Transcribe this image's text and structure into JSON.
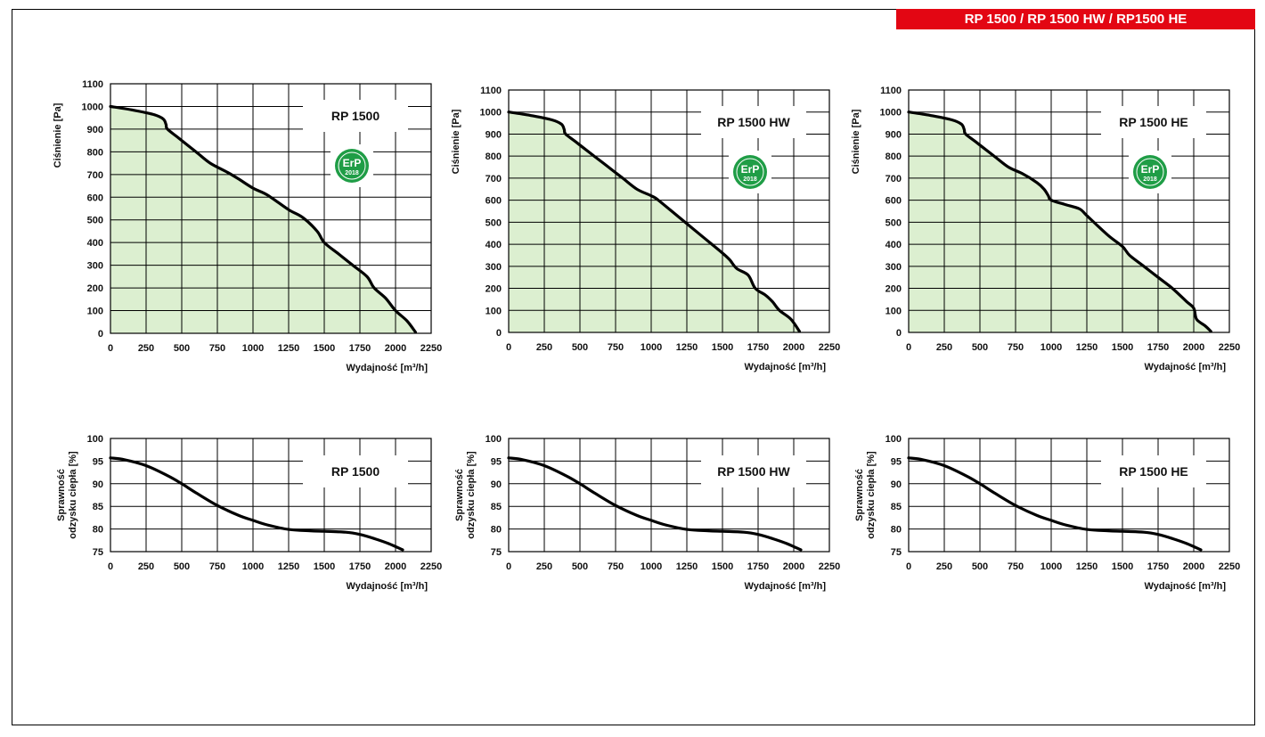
{
  "header": {
    "banner": "RP 1500 / RP 1500 HW / RP1500 HE"
  },
  "colors": {
    "banner": "#e30613",
    "fill": "#dcefd0",
    "badge": "#1f9d46",
    "curve": "#000000"
  },
  "erp_badge": {
    "text": "ErP",
    "year": "2018"
  },
  "chart_data": [
    {
      "type": "area",
      "model_label": "RP 1500",
      "xlabel": "Wydajność [m³/h]",
      "ylabel": "Ciśnienie [Pa]",
      "xlim": [
        0,
        2250
      ],
      "ylim": [
        0,
        1100
      ],
      "xticks": [
        0,
        250,
        500,
        750,
        1000,
        1250,
        1500,
        1750,
        2000,
        2250
      ],
      "yticks": [
        0,
        100,
        200,
        300,
        400,
        500,
        600,
        700,
        800,
        900,
        1000,
        1100
      ],
      "grid": true,
      "badge": true,
      "x": [
        0,
        150,
        300,
        370,
        390,
        400,
        480,
        600,
        700,
        820,
        900,
        1000,
        1100,
        1250,
        1350,
        1450,
        1500,
        1600,
        1700,
        1800,
        1850,
        1930,
        2000,
        2080,
        2140
      ],
      "y": [
        1000,
        985,
        965,
        945,
        920,
        900,
        860,
        800,
        750,
        710,
        680,
        640,
        610,
        545,
        510,
        450,
        400,
        350,
        300,
        250,
        200,
        155,
        100,
        55,
        5
      ]
    },
    {
      "type": "area",
      "model_label": "RP 1500 HW",
      "xlabel": "Wydajność [m³/h]",
      "ylabel": "Ciśnienie [Pa]",
      "xlim": [
        0,
        2250
      ],
      "ylim": [
        0,
        1100
      ],
      "xticks": [
        0,
        250,
        500,
        750,
        1000,
        1250,
        1500,
        1750,
        2000,
        2250
      ],
      "yticks": [
        0,
        100,
        200,
        300,
        400,
        500,
        600,
        700,
        800,
        900,
        1000,
        1100
      ],
      "grid": true,
      "badge": true,
      "x": [
        0,
        150,
        300,
        370,
        390,
        400,
        480,
        600,
        700,
        800,
        900,
        1000,
        1050,
        1200,
        1350,
        1500,
        1550,
        1600,
        1680,
        1730,
        1800,
        1850,
        1900,
        1980,
        2040
      ],
      "y": [
        1000,
        985,
        965,
        945,
        920,
        900,
        860,
        800,
        750,
        700,
        650,
        620,
        600,
        520,
        440,
        360,
        330,
        290,
        260,
        200,
        170,
        140,
        100,
        60,
        5
      ]
    },
    {
      "type": "area",
      "model_label": "RP 1500 HE",
      "xlabel": "Wydajność [m³/h]",
      "ylabel": "Ciśnienie [Pa]",
      "xlim": [
        0,
        2250
      ],
      "ylim": [
        0,
        1100
      ],
      "xticks": [
        0,
        250,
        500,
        750,
        1000,
        1250,
        1500,
        1750,
        2000,
        2250
      ],
      "yticks": [
        0,
        100,
        200,
        300,
        400,
        500,
        600,
        700,
        800,
        900,
        1000,
        1100
      ],
      "grid": true,
      "badge": true,
      "x": [
        0,
        150,
        300,
        370,
        390,
        400,
        480,
        600,
        700,
        800,
        900,
        950,
        980,
        1000,
        1100,
        1200,
        1250,
        1400,
        1500,
        1550,
        1650,
        1750,
        1850,
        1950,
        2000,
        2020,
        2080,
        2120
      ],
      "y": [
        1000,
        985,
        965,
        945,
        920,
        900,
        860,
        800,
        750,
        720,
        680,
        650,
        620,
        600,
        580,
        560,
        530,
        440,
        390,
        350,
        300,
        250,
        200,
        140,
        110,
        60,
        30,
        5
      ]
    },
    {
      "type": "line",
      "model_label": "RP 1500",
      "xlabel": "Wydajność [m³/h]",
      "ylabel": [
        "Sprawność",
        "odzysku ciepła [%]"
      ],
      "xlim": [
        0,
        2250
      ],
      "ylim": [
        75,
        100
      ],
      "xticks": [
        0,
        250,
        500,
        750,
        1000,
        1250,
        1500,
        1750,
        2000,
        2250
      ],
      "yticks": [
        75,
        80,
        85,
        90,
        95,
        100
      ],
      "grid": true,
      "badge": false,
      "x": [
        0,
        100,
        250,
        400,
        500,
        600,
        750,
        900,
        1000,
        1100,
        1250,
        1400,
        1500,
        1650,
        1750,
        1850,
        1950,
        2050
      ],
      "y": [
        95.7,
        95.3,
        94.0,
        91.8,
        90.0,
        88.0,
        85.2,
        83.0,
        81.9,
        80.9,
        79.9,
        79.6,
        79.5,
        79.3,
        78.8,
        77.9,
        76.8,
        75.4
      ]
    },
    {
      "type": "line",
      "model_label": "RP 1500 HW",
      "xlabel": "Wydajność [m³/h]",
      "ylabel": [
        "Sprawność",
        "odzysku ciepła [%]"
      ],
      "xlim": [
        0,
        2250
      ],
      "ylim": [
        75,
        100
      ],
      "xticks": [
        0,
        250,
        500,
        750,
        1000,
        1250,
        1500,
        1750,
        2000,
        2250
      ],
      "yticks": [
        75,
        80,
        85,
        90,
        95,
        100
      ],
      "grid": true,
      "badge": false,
      "x": [
        0,
        100,
        250,
        400,
        500,
        600,
        750,
        900,
        1000,
        1100,
        1250,
        1400,
        1500,
        1650,
        1750,
        1850,
        1950,
        2050
      ],
      "y": [
        95.7,
        95.3,
        94.0,
        91.8,
        90.0,
        88.0,
        85.2,
        83.0,
        81.9,
        80.9,
        79.9,
        79.6,
        79.5,
        79.3,
        78.8,
        77.9,
        76.8,
        75.4
      ]
    },
    {
      "type": "line",
      "model_label": "RP 1500 HE",
      "xlabel": "Wydajność [m³/h]",
      "ylabel": [
        "Sprawność",
        "odzysku ciepła [%]"
      ],
      "xlim": [
        0,
        2250
      ],
      "ylim": [
        75,
        100
      ],
      "xticks": [
        0,
        250,
        500,
        750,
        1000,
        1250,
        1500,
        1750,
        2000,
        2250
      ],
      "yticks": [
        75,
        80,
        85,
        90,
        95,
        100
      ],
      "grid": true,
      "badge": false,
      "x": [
        0,
        100,
        250,
        400,
        500,
        600,
        750,
        900,
        1000,
        1100,
        1250,
        1400,
        1500,
        1650,
        1750,
        1850,
        1950,
        2050
      ],
      "y": [
        95.7,
        95.3,
        94.0,
        91.8,
        90.0,
        88.0,
        85.2,
        83.0,
        81.9,
        80.9,
        79.9,
        79.6,
        79.5,
        79.3,
        78.8,
        77.9,
        76.8,
        75.4
      ]
    }
  ]
}
